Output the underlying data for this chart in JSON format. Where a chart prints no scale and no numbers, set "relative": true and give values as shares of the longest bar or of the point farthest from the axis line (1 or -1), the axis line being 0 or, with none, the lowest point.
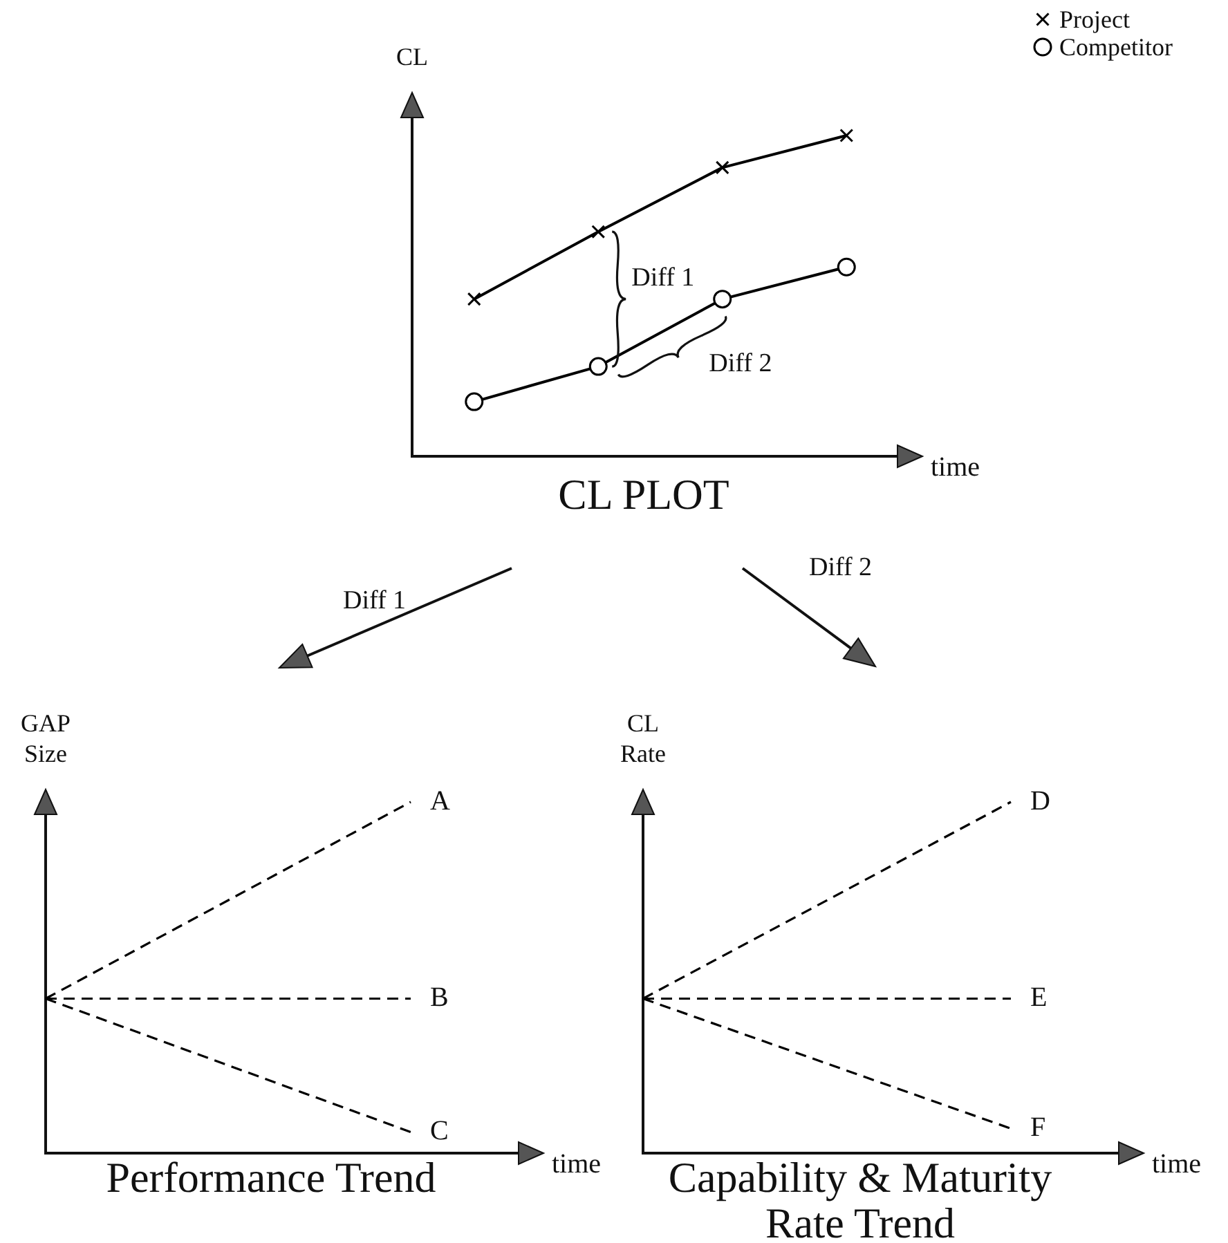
{
  "chart_data": [
    {
      "type": "line",
      "title": "CL PLOT",
      "xlabel": "time",
      "ylabel": "CL",
      "categories": [
        null,
        null,
        null,
        null
      ],
      "relative": true,
      "tick_labels": false,
      "legend": "top right",
      "line_style": "solid",
      "series": [
        {
          "name": "Project",
          "color": "#000000",
          "marker": "cross",
          "values": [
            0.49,
            0.7,
            0.9,
            1
          ]
        },
        {
          "name": "Competitor",
          "color": "#000000",
          "marker": "circle",
          "values": [
            0.17,
            0.28,
            0.49,
            0.59
          ]
        }
      ],
      "annotations": [
        "Diff 1",
        "Diff 2"
      ]
    },
    {
      "type": "line",
      "title": "Performance Trend",
      "xlabel": "time",
      "ylabel": "GAP Size",
      "categories": [
        null,
        null
      ],
      "relative": true,
      "tick_labels": false,
      "line_style": "dashed",
      "series": [
        {
          "name": "A",
          "color": "#000000",
          "values": [
            0.44,
            1
          ]
        },
        {
          "name": "B",
          "color": "#000000",
          "values": [
            0.44,
            0.44
          ]
        },
        {
          "name": "C",
          "color": "#000000",
          "values": [
            0.44,
            0.06
          ]
        }
      ],
      "annotations": [
        "Diff 1"
      ]
    },
    {
      "type": "line",
      "title": "Capability & Maturity Rate Trend",
      "xlabel": "time",
      "ylabel": "CL Rate",
      "categories": [
        null,
        null
      ],
      "relative": true,
      "tick_labels": false,
      "line_style": "dashed",
      "series": [
        {
          "name": "D",
          "color": "#000000",
          "values": [
            0.44,
            1
          ]
        },
        {
          "name": "E",
          "color": "#000000",
          "values": [
            0.44,
            0.44
          ]
        },
        {
          "name": "F",
          "color": "#000000",
          "values": [
            0.44,
            0.07
          ]
        }
      ],
      "annotations": [
        "Diff 2"
      ]
    }
  ]
}
